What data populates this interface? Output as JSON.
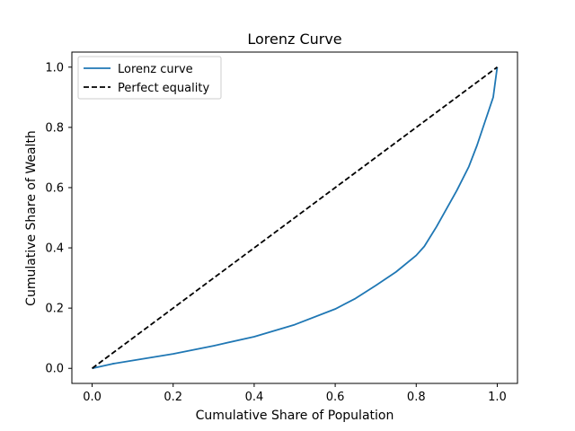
{
  "chart_data": {
    "type": "line",
    "title": "Lorenz Curve",
    "xlabel": "Cumulative Share of Population",
    "ylabel": "Cumulative Share of Wealth",
    "xlim": [
      -0.05,
      1.05
    ],
    "ylim": [
      -0.05,
      1.05
    ],
    "xticks": [
      "0.0",
      "0.2",
      "0.4",
      "0.6",
      "0.8",
      "1.0"
    ],
    "yticks": [
      "0.0",
      "0.2",
      "0.4",
      "0.6",
      "0.8",
      "1.0"
    ],
    "grid": false,
    "legend_position": "upper-left",
    "series": [
      {
        "name": "Lorenz curve",
        "color": "#1f77b4",
        "style": "solid",
        "x": [
          0.0,
          0.05,
          0.1,
          0.2,
          0.3,
          0.4,
          0.5,
          0.6,
          0.65,
          0.7,
          0.75,
          0.8,
          0.82,
          0.85,
          0.9,
          0.93,
          0.95,
          0.97,
          0.98,
          0.99,
          0.995,
          1.0
        ],
        "y": [
          0.0,
          0.015,
          0.026,
          0.048,
          0.075,
          0.105,
          0.145,
          0.197,
          0.232,
          0.275,
          0.32,
          0.375,
          0.405,
          0.47,
          0.59,
          0.67,
          0.74,
          0.82,
          0.86,
          0.9,
          0.95,
          1.0
        ]
      },
      {
        "name": "Perfect equality",
        "color": "#000000",
        "style": "dashed",
        "x": [
          0.0,
          1.0
        ],
        "y": [
          0.0,
          1.0
        ]
      }
    ]
  }
}
